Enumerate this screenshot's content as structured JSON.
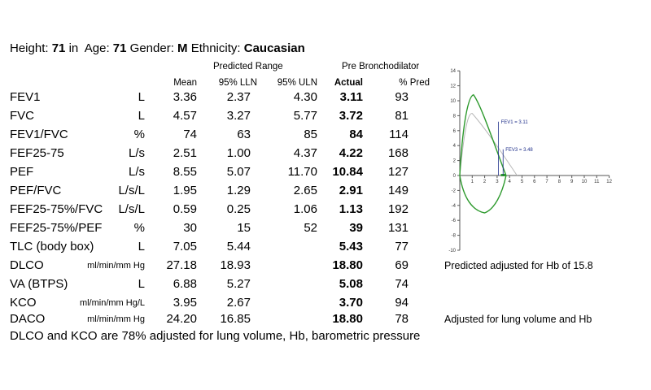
{
  "demographics": {
    "height_label": "Height:",
    "height_value": "71",
    "height_unit": "in",
    "age_label": "Age:",
    "age_value": "71",
    "gender_label": "Gender:",
    "gender_value": "M",
    "ethnicity_label": "Ethnicity:",
    "ethnicity_value": "Caucasian"
  },
  "headers": {
    "predicted_range": "Predicted Range",
    "pre_bronchodilator": "Pre Bronchodilator",
    "mean": "Mean",
    "lln": "95% LLN",
    "uln": "95% ULN",
    "actual": "Actual",
    "pred": "% Pred"
  },
  "rows": [
    {
      "name": "FEV1",
      "unit": "L",
      "mean": "3.36",
      "lln": "2.37",
      "uln": "4.30",
      "actual": "3.11",
      "pred": "93"
    },
    {
      "name": "FVC",
      "unit": "L",
      "mean": "4.57",
      "lln": "3.27",
      "uln": "5.77",
      "actual": "3.72",
      "pred": "81"
    },
    {
      "name": "FEV1/FVC",
      "unit": "%",
      "mean": "74",
      "lln": "63",
      "uln": "85",
      "actual": "84",
      "pred": "114"
    },
    {
      "name": "FEF25-75",
      "unit": "L/s",
      "mean": "2.51",
      "lln": "1.00",
      "uln": "4.37",
      "actual": "4.22",
      "pred": "168"
    },
    {
      "name": "PEF",
      "unit": "L/s",
      "mean": "8.55",
      "lln": "5.07",
      "uln": "11.70",
      "actual": "10.84",
      "pred": "127"
    },
    {
      "name": "PEF/FVC",
      "unit": "L/s/L",
      "mean": "1.95",
      "lln": "1.29",
      "uln": "2.65",
      "actual": "2.91",
      "pred": "149"
    },
    {
      "name": "FEF25-75%/FVC",
      "unit": "L/s/L",
      "mean": "0.59",
      "lln": "0.25",
      "uln": "1.06",
      "actual": "1.13",
      "pred": "192"
    },
    {
      "name": "FEF25-75%/PEF",
      "unit": "%",
      "mean": "30",
      "lln": "15",
      "uln": "52",
      "actual": "39",
      "pred": "131"
    },
    {
      "name": "TLC (body box)",
      "unit": "L",
      "mean": "7.05",
      "lln": "5.44",
      "uln": "",
      "actual": "5.43",
      "pred": "77"
    },
    {
      "name": "DLCO",
      "unit": "ml/min/mm Hg",
      "mean": "27.18",
      "lln": "18.93",
      "uln": "",
      "actual": "18.80",
      "pred": "69"
    },
    {
      "name": "VA (BTPS)",
      "unit": "L",
      "mean": "6.88",
      "lln": "5.27",
      "uln": "",
      "actual": "5.08",
      "pred": "74"
    },
    {
      "name": "KCO",
      "unit": "ml/min/mm Hg/L",
      "mean": "3.95",
      "lln": "2.67",
      "uln": "",
      "actual": "3.70",
      "pred": "94"
    },
    {
      "name": "DACO",
      "unit": "ml/min/mm Hg",
      "mean": "24.20",
      "lln": "16.85",
      "uln": "",
      "actual": "18.80",
      "pred": "78"
    }
  ],
  "notes": {
    "dlco_note": "Predicted adjusted for Hb of 15.8",
    "daco_note": "Adjusted for lung volume and Hb"
  },
  "footer": "DLCO and KCO are 78% adjusted for lung volume, Hb, barometric pressure",
  "chart_data": {
    "type": "line",
    "x_ticks": [
      "1",
      "2",
      "3",
      "4",
      "5",
      "6",
      "7",
      "8",
      "9",
      "10",
      "11",
      "12"
    ],
    "y_ticks": [
      "14",
      "12",
      "10",
      "8",
      "6",
      "4",
      "2",
      "0",
      "-2",
      "-4",
      "-6",
      "-8",
      "-10"
    ],
    "xlim": [
      0,
      12
    ],
    "ylim": [
      -10,
      14
    ],
    "annotations": [
      {
        "text": "FEV1 = 3.11",
        "x": 3.11
      },
      {
        "text": "FEV3 = 3.48",
        "x": 3.48
      }
    ],
    "colors": {
      "measured": "#2e9a2e",
      "predicted": "#b8b8b8",
      "marker": "#1f2f8a"
    }
  }
}
